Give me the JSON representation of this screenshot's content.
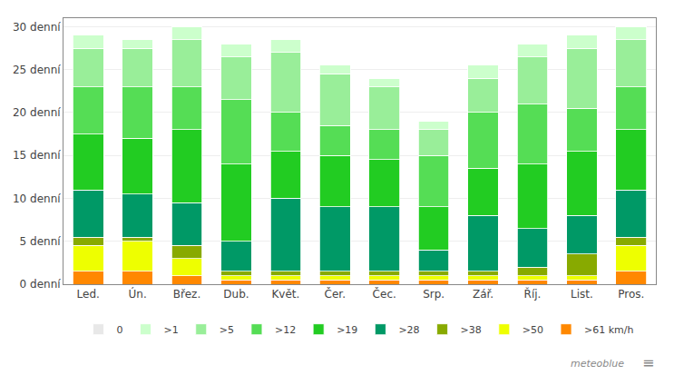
{
  "chart_data": {
    "type": "bar",
    "stacked": true,
    "categories": [
      "Led.",
      "Ún.",
      "Břez.",
      "Dub.",
      "Květ.",
      "Čer.",
      "Čec.",
      "Srp.",
      "Zář.",
      "Říj.",
      "List.",
      "Pros."
    ],
    "series": [
      {
        "name": ">61 km/h",
        "color": "#ff8800",
        "values": [
          1.5,
          1.5,
          1.0,
          0.5,
          0.5,
          0.5,
          0.5,
          0.5,
          0.5,
          0.5,
          0.5,
          1.5
        ]
      },
      {
        "name": ">50",
        "color": "#eeff00",
        "values": [
          3.0,
          3.5,
          2.0,
          0.5,
          0.5,
          0.5,
          0.5,
          0.5,
          0.5,
          0.5,
          0.5,
          3.0
        ]
      },
      {
        "name": ">38",
        "color": "#88aa00",
        "values": [
          1.0,
          0.5,
          1.5,
          0.5,
          0.5,
          0.5,
          0.5,
          0.5,
          0.5,
          1.0,
          2.5,
          1.0
        ]
      },
      {
        "name": ">28",
        "color": "#009966",
        "values": [
          5.5,
          5.0,
          5.0,
          3.5,
          8.5,
          7.5,
          7.5,
          2.5,
          6.5,
          4.5,
          4.5,
          5.5
        ]
      },
      {
        "name": ">19",
        "color": "#22cc22",
        "values": [
          6.5,
          6.5,
          8.5,
          9.0,
          5.5,
          6.0,
          5.5,
          5.0,
          5.5,
          7.5,
          7.5,
          7.0
        ]
      },
      {
        "name": ">12",
        "color": "#55dd55",
        "values": [
          5.5,
          6.0,
          5.0,
          7.5,
          4.5,
          3.5,
          3.5,
          6.0,
          6.5,
          7.0,
          5.0,
          5.0
        ]
      },
      {
        "name": ">5",
        "color": "#99ee99",
        "values": [
          4.5,
          4.5,
          5.5,
          5.0,
          7.0,
          6.0,
          5.0,
          3.0,
          4.0,
          5.5,
          7.0,
          5.5
        ]
      },
      {
        "name": ">1",
        "color": "#ccffcc",
        "values": [
          1.5,
          1.0,
          1.5,
          1.5,
          1.5,
          1.0,
          1.0,
          1.0,
          1.5,
          1.5,
          1.5,
          1.5
        ]
      },
      {
        "name": "0",
        "color": "#e8e8e8",
        "values": [
          0,
          0,
          0,
          0,
          0,
          0,
          0,
          0,
          0,
          0,
          0,
          0
        ]
      }
    ],
    "ylim": [
      0,
      31
    ],
    "yticks": [
      {
        "value": 0,
        "label": "0 denní"
      },
      {
        "value": 5,
        "label": "5 denní"
      },
      {
        "value": 10,
        "label": "10 denní"
      },
      {
        "value": 15,
        "label": "15 denní"
      },
      {
        "value": 20,
        "label": "20 denní"
      },
      {
        "value": 25,
        "label": "25 denní"
      },
      {
        "value": 30,
        "label": "30 denní"
      }
    ],
    "grid": true,
    "legend": "bottom",
    "annotations": [
      "meteoblue",
      "≡"
    ]
  }
}
